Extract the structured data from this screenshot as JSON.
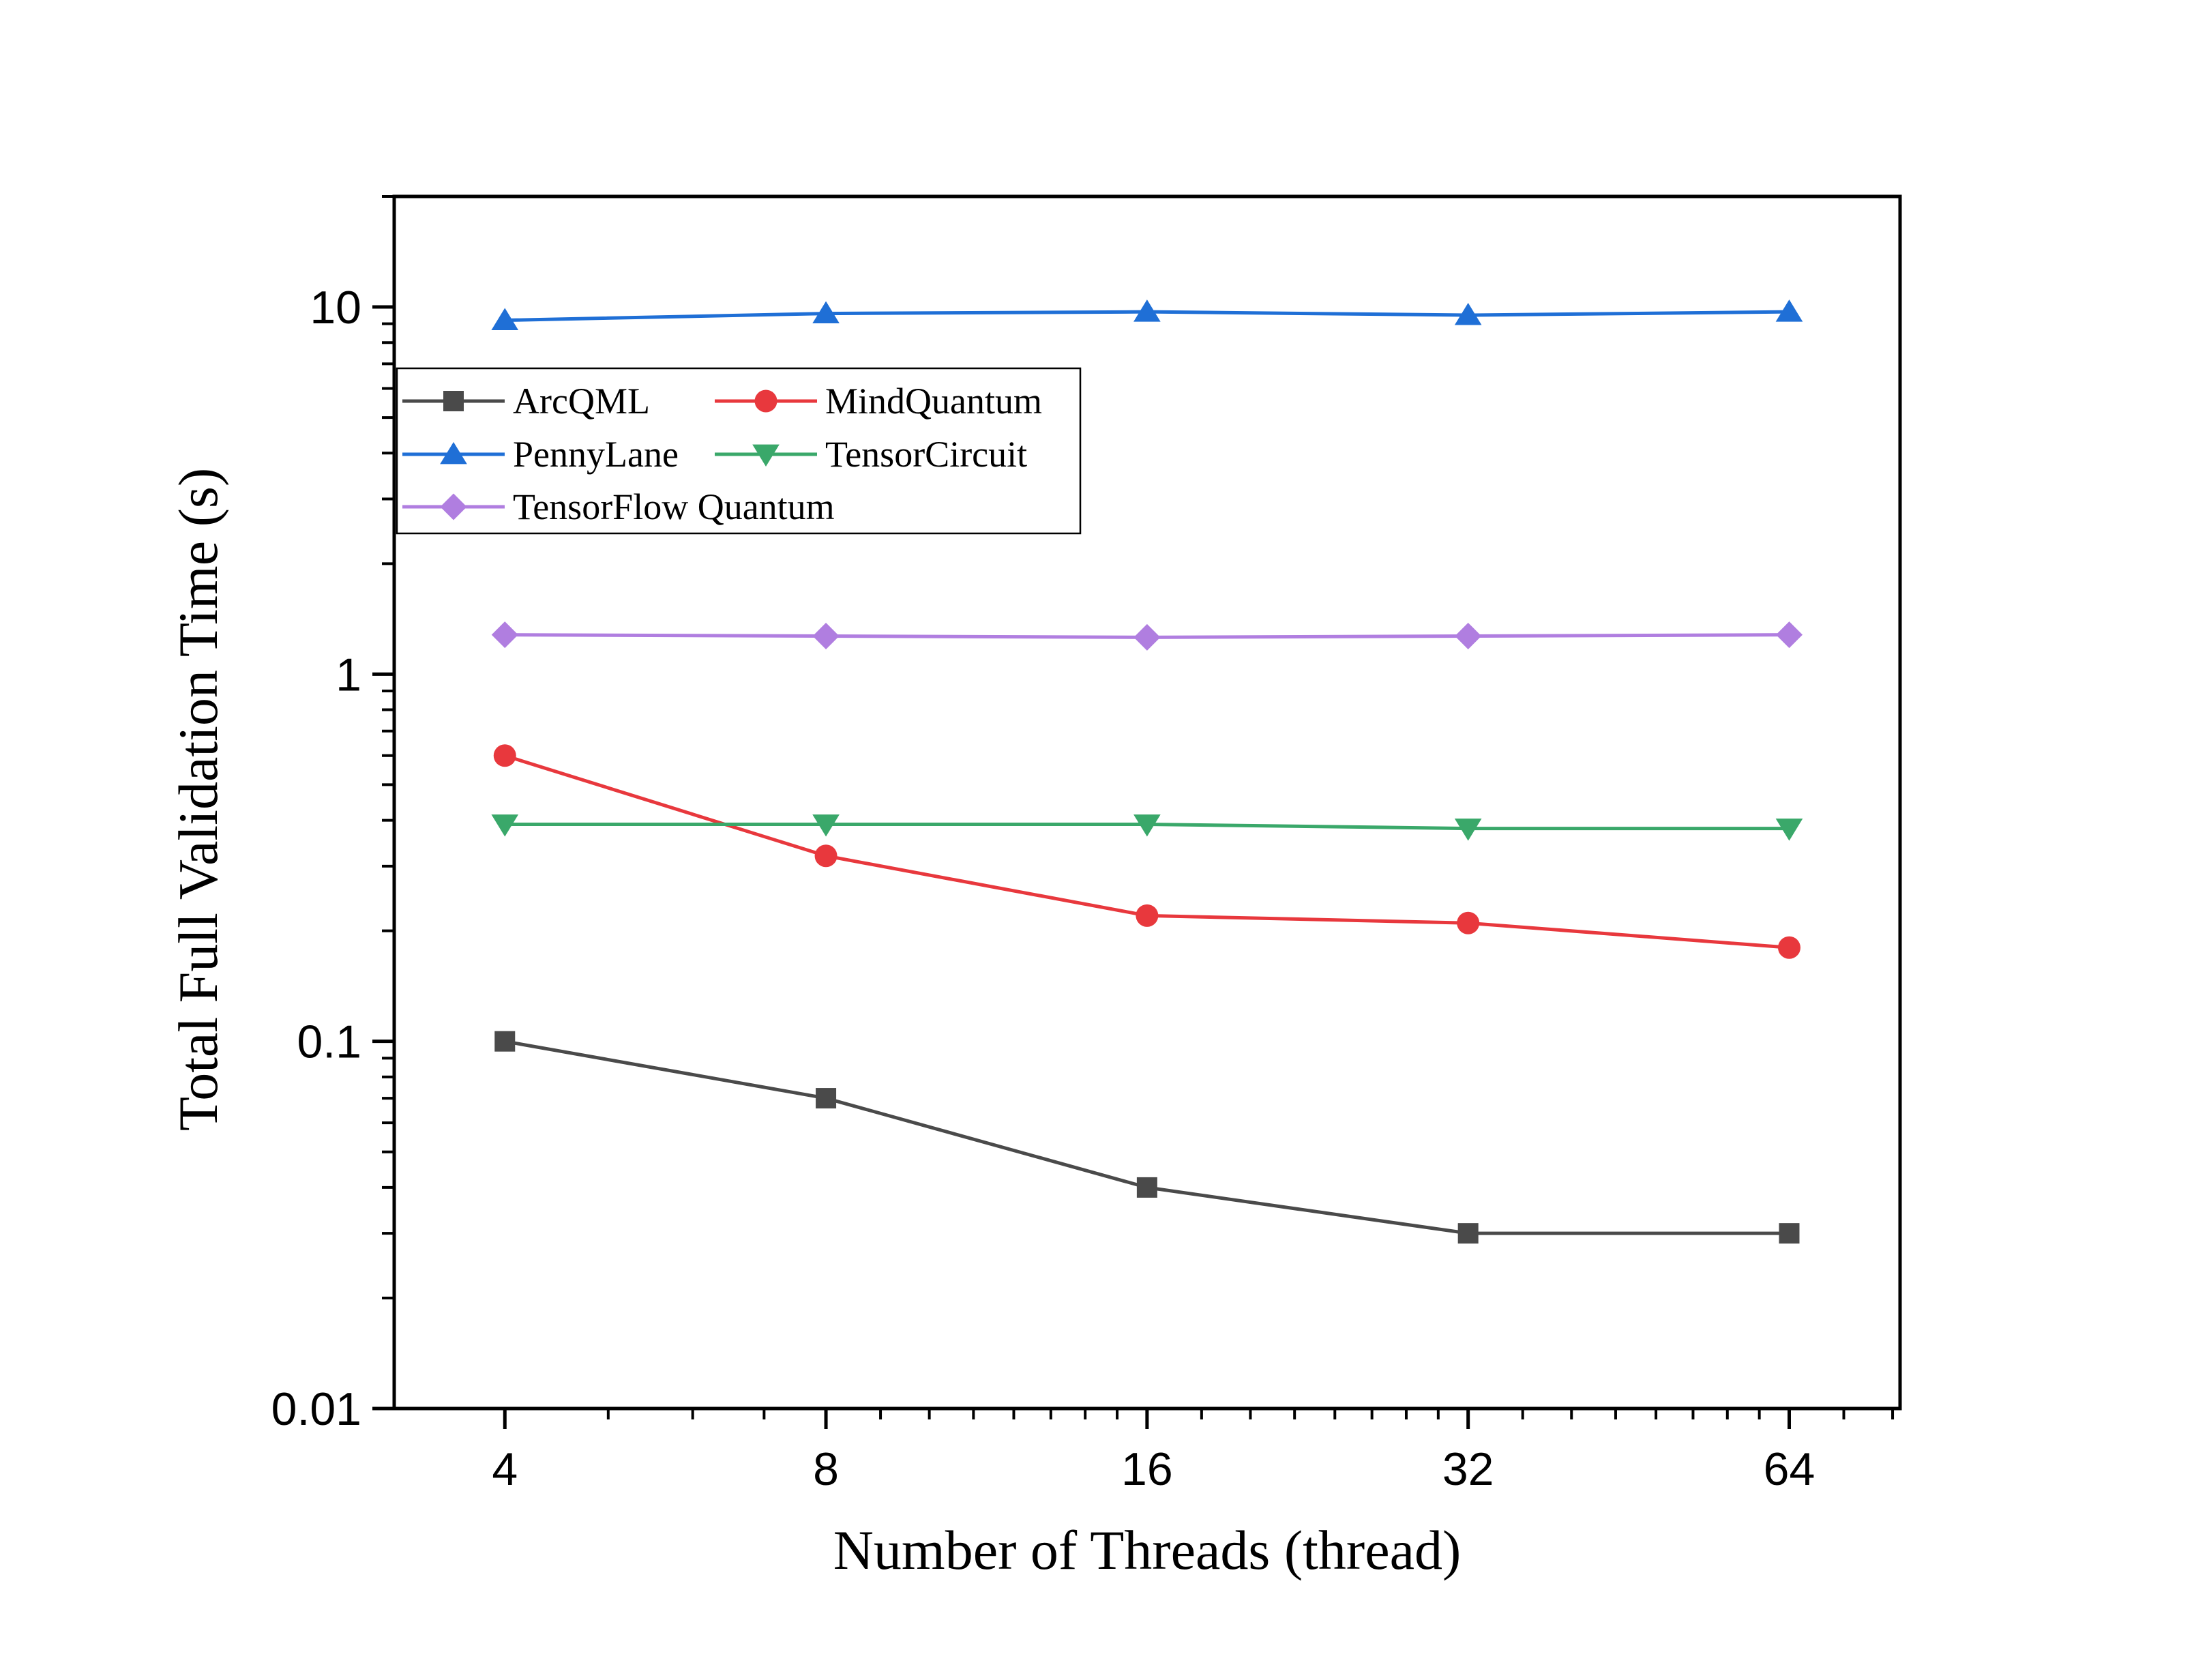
{
  "chart_data": {
    "type": "line",
    "xlabel": "Number of Threads (thread)",
    "ylabel": "Total Full Validation Time (s)",
    "x_scale": "log2",
    "y_scale": "log10",
    "x": [
      4,
      8,
      16,
      32,
      64
    ],
    "x_tick_labels": [
      "4",
      "8",
      "16",
      "32",
      "64"
    ],
    "xlim": [
      3.15,
      81.3
    ],
    "ylim": [
      0.01,
      20
    ],
    "y_ticks": [
      0.01,
      0.1,
      1,
      10
    ],
    "y_tick_labels": [
      "0.01",
      "0.1",
      "1",
      "10"
    ],
    "grid": false,
    "legend_position": "upper-left",
    "series": [
      {
        "name": "ArcQML",
        "color": "#4a4a4a",
        "marker": "square",
        "values": [
          0.1,
          0.07,
          0.04,
          0.03,
          0.03
        ]
      },
      {
        "name": "MindQuantum",
        "color": "#e8383d",
        "marker": "circle",
        "values": [
          0.6,
          0.32,
          0.22,
          0.21,
          0.18
        ]
      },
      {
        "name": "PennyLane",
        "color": "#1f6fd6",
        "marker": "triangle-up",
        "values": [
          9.2,
          9.6,
          9.7,
          9.5,
          9.7
        ]
      },
      {
        "name": "TensorCircuit",
        "color": "#3aa86a",
        "marker": "triangle-down",
        "values": [
          0.39,
          0.39,
          0.39,
          0.38,
          0.38
        ]
      },
      {
        "name": "TensorFlow Quantum",
        "color": "#b07ee0",
        "marker": "diamond",
        "values": [
          1.28,
          1.27,
          1.26,
          1.27,
          1.28
        ]
      }
    ]
  }
}
